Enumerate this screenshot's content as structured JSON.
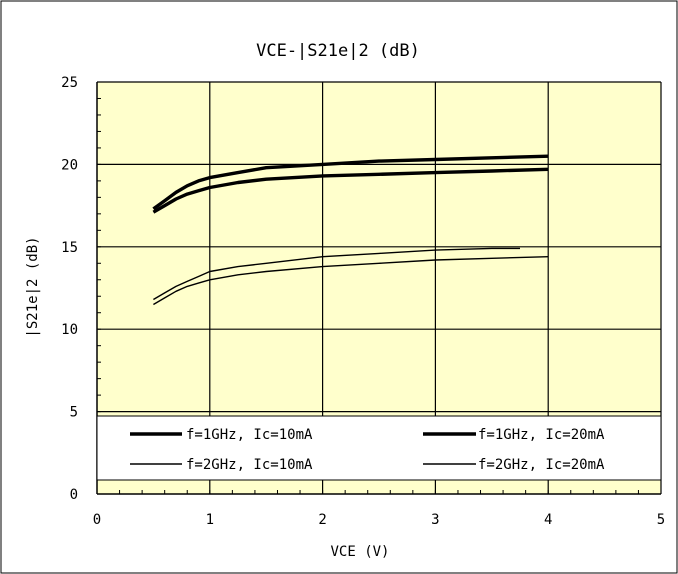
{
  "chart_data": {
    "type": "line",
    "title": "VCE-|S21e|2  (dB)",
    "xlabel": "VCE  (V)",
    "ylabel": "|S21e|2 (dB)",
    "xlim": [
      0,
      5
    ],
    "ylim": [
      0,
      25
    ],
    "x_ticks": [
      "0",
      "1",
      "2",
      "3",
      "4",
      "5"
    ],
    "y_ticks": [
      "0",
      "5",
      "10",
      "15",
      "20",
      "25"
    ],
    "grid": true,
    "plot_background": "#ffffcc",
    "legend_placement": "bottom-inside",
    "series": [
      {
        "name": "f=1GHz, Ic=10mA",
        "color": "#000000",
        "weight": "thick",
        "points": [
          [
            0.5,
            17.1
          ],
          [
            0.6,
            17.5
          ],
          [
            0.7,
            17.9
          ],
          [
            0.8,
            18.2
          ],
          [
            0.9,
            18.4
          ],
          [
            1.0,
            18.6
          ],
          [
            1.25,
            18.9
          ],
          [
            1.5,
            19.1
          ],
          [
            2.0,
            19.3
          ],
          [
            2.5,
            19.4
          ],
          [
            3.0,
            19.5
          ],
          [
            3.5,
            19.6
          ],
          [
            4.0,
            19.7
          ]
        ]
      },
      {
        "name": "f=1GHz, Ic=20mA",
        "color": "#000000",
        "weight": "thick",
        "points": [
          [
            0.5,
            17.3
          ],
          [
            0.6,
            17.8
          ],
          [
            0.7,
            18.3
          ],
          [
            0.8,
            18.7
          ],
          [
            0.9,
            19.0
          ],
          [
            1.0,
            19.2
          ],
          [
            1.25,
            19.5
          ],
          [
            1.5,
            19.8
          ],
          [
            2.0,
            20.0
          ],
          [
            2.5,
            20.2
          ],
          [
            3.0,
            20.3
          ],
          [
            3.5,
            20.4
          ],
          [
            4.0,
            20.5
          ]
        ]
      },
      {
        "name": "f=2GHz, Ic=10mA",
        "color": "#000000",
        "weight": "thin",
        "points": [
          [
            0.5,
            11.5
          ],
          [
            0.6,
            11.9
          ],
          [
            0.7,
            12.3
          ],
          [
            0.8,
            12.6
          ],
          [
            0.9,
            12.8
          ],
          [
            1.0,
            13.0
          ],
          [
            1.25,
            13.3
          ],
          [
            1.5,
            13.5
          ],
          [
            2.0,
            13.8
          ],
          [
            2.5,
            14.0
          ],
          [
            3.0,
            14.2
          ],
          [
            3.5,
            14.3
          ],
          [
            4.0,
            14.4
          ]
        ]
      },
      {
        "name": "f=2GHz, Ic=20mA",
        "color": "#000000",
        "weight": "thin",
        "points": [
          [
            0.5,
            11.8
          ],
          [
            0.6,
            12.2
          ],
          [
            0.7,
            12.6
          ],
          [
            0.8,
            12.9
          ],
          [
            0.9,
            13.2
          ],
          [
            1.0,
            13.5
          ],
          [
            1.25,
            13.8
          ],
          [
            1.5,
            14.0
          ],
          [
            2.0,
            14.4
          ],
          [
            2.5,
            14.6
          ],
          [
            3.0,
            14.8
          ],
          [
            3.5,
            14.9
          ],
          [
            3.75,
            14.9
          ]
        ]
      }
    ]
  }
}
